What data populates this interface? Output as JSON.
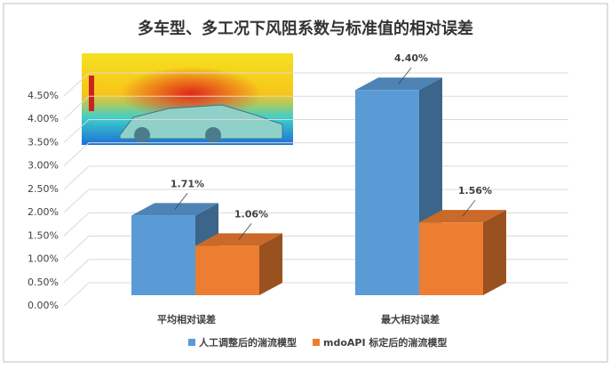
{
  "chart_data": {
    "type": "bar3d",
    "title": "多车型、多工况下风阻系数与标准值的相对误差",
    "categories": [
      "平均相对误差",
      "最大相对误差"
    ],
    "series": [
      {
        "name": "人工调整后的湍流模型",
        "color": "#5b9bd5",
        "values": [
          1.71,
          4.4
        ],
        "value_labels": [
          "1.71%",
          "4.40%"
        ]
      },
      {
        "name": "mdoAPI 标定后的湍流模型",
        "color": "#ed7d31",
        "values": [
          1.06,
          1.56
        ],
        "value_labels": [
          "1.06%",
          "1.56%"
        ]
      }
    ],
    "ylim": [
      0,
      4.5
    ],
    "yticks": [
      {
        "value": 0,
        "label": "0.00%"
      },
      {
        "value": 0.5,
        "label": "0.50%"
      },
      {
        "value": 1,
        "label": "1.00%"
      },
      {
        "value": 1.5,
        "label": "1.50%"
      },
      {
        "value": 2,
        "label": "2.00%"
      },
      {
        "value": 2.5,
        "label": "2.50%"
      },
      {
        "value": 3,
        "label": "3.00%"
      },
      {
        "value": 3.5,
        "label": "3.50%"
      },
      {
        "value": 4,
        "label": "4.00%"
      },
      {
        "value": 4.5,
        "label": "4.50%"
      }
    ],
    "grid": true,
    "legend": "bottom"
  }
}
